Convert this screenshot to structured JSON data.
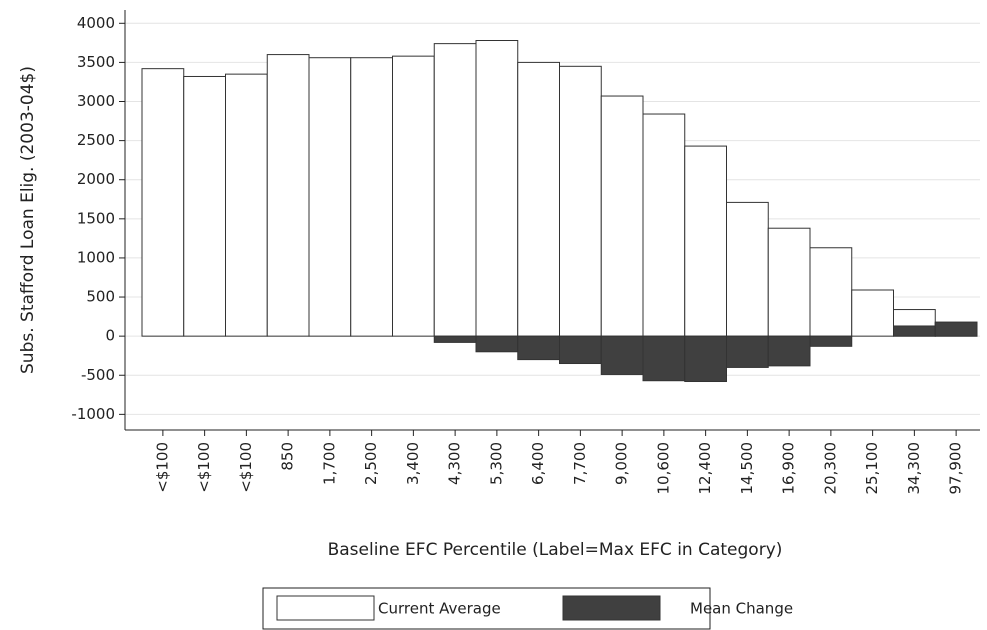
{
  "chart_data": {
    "type": "bar",
    "ylabel": "Subs. Stafford Loan Elig. (2003-04$)",
    "xlabel": "Baseline EFC Percentile (Label=Max EFC in Category)",
    "categories": [
      "<$100",
      "<$100",
      "<$100",
      "850",
      "1,700",
      "2,500",
      "3,400",
      "4,300",
      "5,300",
      "6,400",
      "7,700",
      "9,000",
      "10,600",
      "12,400",
      "14,500",
      "16,900",
      "20,300",
      "25,100",
      "34,300",
      "97,900"
    ],
    "series": [
      {
        "name": "Current Average",
        "color": "#ffffff",
        "values": [
          3420,
          3320,
          3350,
          3600,
          3560,
          3560,
          3580,
          3740,
          3780,
          3500,
          3450,
          3070,
          2840,
          2430,
          1710,
          1380,
          1130,
          590,
          340,
          170
        ]
      },
      {
        "name": "Mean Change",
        "color": "#404040",
        "values": [
          0,
          0,
          0,
          0,
          0,
          0,
          0,
          -80,
          -200,
          -300,
          -350,
          -490,
          -570,
          -580,
          -400,
          -380,
          -130,
          0,
          130,
          180
        ]
      }
    ],
    "ylim": [
      -1200,
      4170
    ],
    "yticks": [
      -1000,
      -500,
      0,
      500,
      1000,
      1500,
      2000,
      2500,
      3000,
      3500,
      4000
    ],
    "grid": true
  }
}
